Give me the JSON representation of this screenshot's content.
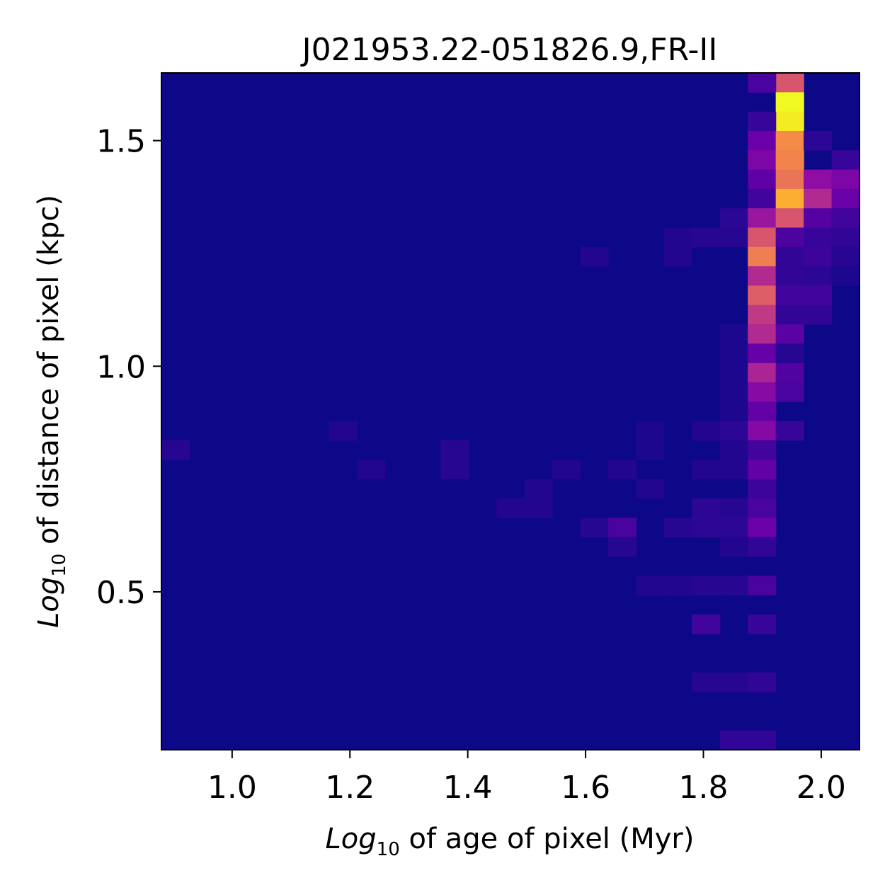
{
  "chart_data": {
    "type": "heatmap",
    "title": "J021953.22-051826.9,FR-II",
    "xlabel": {
      "prefix": "Log",
      "subscript": "10",
      "rest": " of age of pixel (Myr)"
    },
    "ylabel": {
      "prefix": "Log",
      "subscript": "10",
      "rest": " of distance of pixel (kpc)"
    },
    "xlim": [
      0.88,
      2.065
    ],
    "ylim": [
      0.15,
      1.65
    ],
    "xticks": [
      {
        "v": 1.0,
        "label": "1.0"
      },
      {
        "v": 1.2,
        "label": "1.2"
      },
      {
        "v": 1.4,
        "label": "1.4"
      },
      {
        "v": 1.6,
        "label": "1.6"
      },
      {
        "v": 1.8,
        "label": "1.8"
      },
      {
        "v": 2.0,
        "label": "2.0"
      }
    ],
    "yticks": [
      {
        "v": 0.5,
        "label": "0.5"
      },
      {
        "v": 1.0,
        "label": "1.0"
      },
      {
        "v": 1.5,
        "label": "1.5"
      }
    ],
    "colormap": "plasma",
    "bins": {
      "nx": 25,
      "ny": 35
    },
    "nonzero_cells": [
      [
        22,
        34,
        0.55
      ],
      [
        21,
        34,
        0.12
      ],
      [
        22,
        33,
        1.0
      ],
      [
        22,
        32,
        0.97
      ],
      [
        21,
        32,
        0.08
      ],
      [
        21,
        31,
        0.2
      ],
      [
        22,
        31,
        0.72
      ],
      [
        23,
        31,
        0.06
      ],
      [
        21,
        30,
        0.25
      ],
      [
        22,
        30,
        0.7
      ],
      [
        24,
        30,
        0.08
      ],
      [
        21,
        29,
        0.17
      ],
      [
        22,
        29,
        0.65
      ],
      [
        23,
        29,
        0.3
      ],
      [
        24,
        29,
        0.25
      ],
      [
        21,
        28,
        0.1
      ],
      [
        22,
        28,
        0.82
      ],
      [
        23,
        28,
        0.4
      ],
      [
        24,
        28,
        0.2
      ],
      [
        20,
        27,
        0.06
      ],
      [
        21,
        27,
        0.33
      ],
      [
        22,
        27,
        0.55
      ],
      [
        23,
        27,
        0.15
      ],
      [
        24,
        27,
        0.1
      ],
      [
        18,
        26,
        0.04
      ],
      [
        19,
        26,
        0.05
      ],
      [
        20,
        26,
        0.05
      ],
      [
        21,
        26,
        0.55
      ],
      [
        22,
        26,
        0.13
      ],
      [
        23,
        26,
        0.08
      ],
      [
        24,
        26,
        0.07
      ],
      [
        15,
        25,
        0.04
      ],
      [
        18,
        25,
        0.04
      ],
      [
        21,
        25,
        0.68
      ],
      [
        22,
        25,
        0.07
      ],
      [
        23,
        25,
        0.09
      ],
      [
        24,
        25,
        0.05
      ],
      [
        21,
        24,
        0.4
      ],
      [
        22,
        24,
        0.07
      ],
      [
        23,
        24,
        0.06
      ],
      [
        24,
        24,
        0.03
      ],
      [
        21,
        23,
        0.58
      ],
      [
        22,
        23,
        0.1
      ],
      [
        23,
        23,
        0.1
      ],
      [
        21,
        22,
        0.45
      ],
      [
        22,
        22,
        0.07
      ],
      [
        23,
        22,
        0.07
      ],
      [
        20,
        21,
        0.03
      ],
      [
        21,
        21,
        0.4
      ],
      [
        22,
        21,
        0.16
      ],
      [
        20,
        20,
        0.03
      ],
      [
        21,
        20,
        0.19
      ],
      [
        22,
        20,
        0.05
      ],
      [
        20,
        19,
        0.03
      ],
      [
        21,
        19,
        0.38
      ],
      [
        22,
        19,
        0.14
      ],
      [
        20,
        18,
        0.03
      ],
      [
        21,
        18,
        0.28
      ],
      [
        22,
        18,
        0.12
      ],
      [
        20,
        17,
        0.03
      ],
      [
        21,
        17,
        0.18
      ],
      [
        6,
        16,
        0.04
      ],
      [
        17,
        16,
        0.03
      ],
      [
        19,
        16,
        0.04
      ],
      [
        20,
        16,
        0.06
      ],
      [
        21,
        16,
        0.27
      ],
      [
        22,
        16,
        0.08
      ],
      [
        0,
        15,
        0.05
      ],
      [
        10,
        15,
        0.05
      ],
      [
        17,
        15,
        0.03
      ],
      [
        20,
        15,
        0.04
      ],
      [
        21,
        15,
        0.1
      ],
      [
        7,
        14,
        0.04
      ],
      [
        10,
        14,
        0.05
      ],
      [
        14,
        14,
        0.04
      ],
      [
        16,
        14,
        0.04
      ],
      [
        19,
        14,
        0.04
      ],
      [
        20,
        14,
        0.04
      ],
      [
        21,
        14,
        0.18
      ],
      [
        13,
        13,
        0.04
      ],
      [
        17,
        13,
        0.04
      ],
      [
        21,
        13,
        0.09
      ],
      [
        12,
        12,
        0.04
      ],
      [
        13,
        12,
        0.04
      ],
      [
        19,
        12,
        0.06
      ],
      [
        20,
        12,
        0.05
      ],
      [
        21,
        12,
        0.12
      ],
      [
        15,
        11,
        0.05
      ],
      [
        16,
        11,
        0.12
      ],
      [
        18,
        11,
        0.05
      ],
      [
        19,
        11,
        0.06
      ],
      [
        20,
        11,
        0.06
      ],
      [
        21,
        11,
        0.2
      ],
      [
        16,
        10,
        0.05
      ],
      [
        20,
        10,
        0.04
      ],
      [
        21,
        10,
        0.07
      ],
      [
        17,
        8,
        0.04
      ],
      [
        18,
        8,
        0.04
      ],
      [
        19,
        8,
        0.05
      ],
      [
        20,
        8,
        0.05
      ],
      [
        21,
        8,
        0.12
      ],
      [
        19,
        6,
        0.1
      ],
      [
        21,
        6,
        0.08
      ],
      [
        19,
        3,
        0.05
      ],
      [
        20,
        3,
        0.05
      ],
      [
        21,
        3,
        0.07
      ],
      [
        20,
        0,
        0.07
      ],
      [
        21,
        0,
        0.07
      ]
    ]
  }
}
